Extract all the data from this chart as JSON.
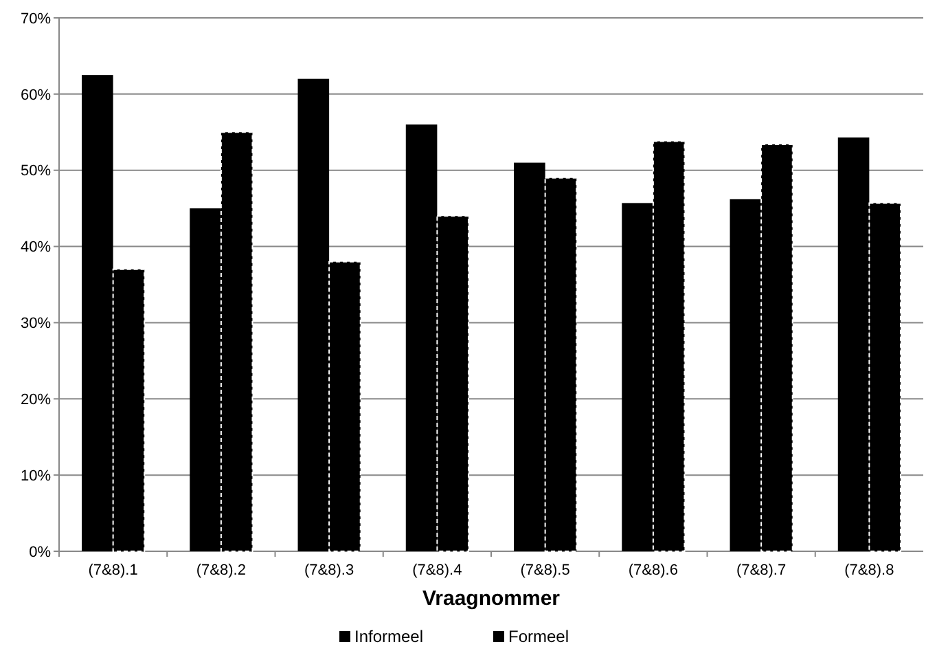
{
  "chart_data": {
    "type": "bar",
    "xlabel": "Vraagnommer",
    "categories": [
      "(7&8).1",
      "(7&8).2",
      "(7&8).3",
      "(7&8).4",
      "(7&8).5",
      "(7&8).6",
      "(7&8).7",
      "(7&8).8"
    ],
    "series": [
      {
        "name": "Informeel",
        "color": "#000000",
        "values": [
          0.625,
          0.45,
          0.62,
          0.56,
          0.51,
          0.457,
          0.462,
          0.543
        ]
      },
      {
        "name": "Formeel",
        "color": "#000000",
        "values": [
          0.37,
          0.55,
          0.38,
          0.44,
          0.49,
          0.538,
          0.534,
          0.457
        ]
      }
    ],
    "ylim": [
      0,
      0.7
    ],
    "yticks": [
      {
        "value": 0,
        "label": "0%"
      },
      {
        "value": 0.1,
        "label": "10%"
      },
      {
        "value": 0.2,
        "label": "20%"
      },
      {
        "value": 0.3,
        "label": "30%"
      },
      {
        "value": 0.4,
        "label": "40%"
      },
      {
        "value": 0.5,
        "label": "50%"
      },
      {
        "value": 0.6,
        "label": "60%"
      },
      {
        "value": 0.7,
        "label": "70%"
      }
    ],
    "grid": "y",
    "legend": "bottom"
  }
}
